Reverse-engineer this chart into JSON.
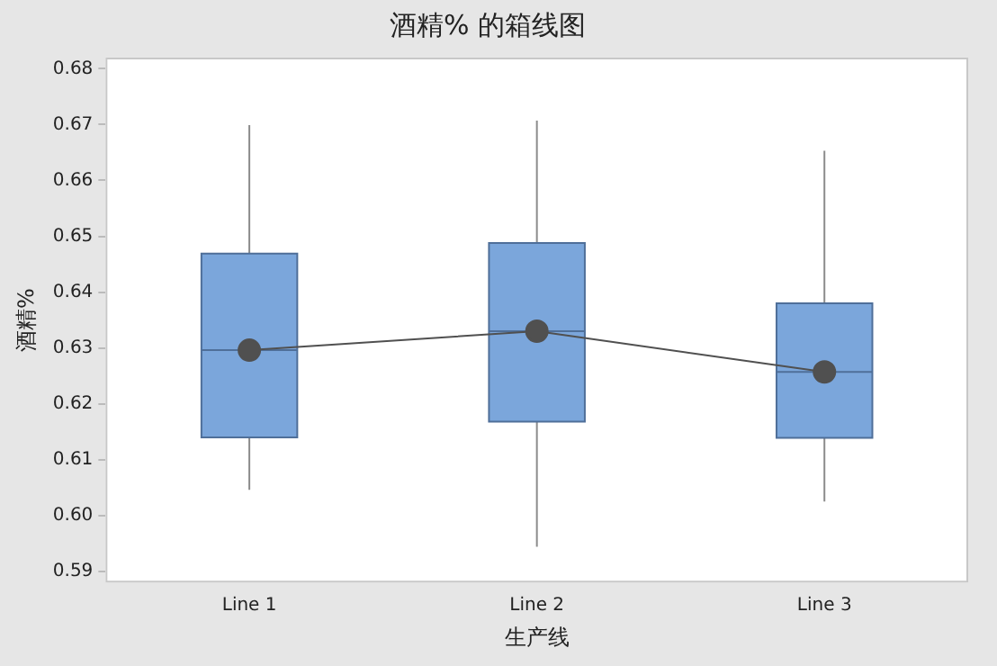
{
  "chart_data": {
    "type": "box",
    "title": "酒精% 的箱线图",
    "xlabel": "生产线",
    "ylabel": "酒精%",
    "categories": [
      "Line 1",
      "Line 2",
      "Line 3"
    ],
    "color": "#7ba6db",
    "boxes": [
      {
        "low": 0.6046,
        "q1": 0.614,
        "median": 0.6296,
        "q3": 0.6469,
        "high": 0.6699
      },
      {
        "low": 0.5944,
        "q1": 0.6168,
        "median": 0.633,
        "q3": 0.6488,
        "high": 0.6707
      },
      {
        "low": 0.6025,
        "q1": 0.6139,
        "median": 0.6257,
        "q3": 0.638,
        "high": 0.6653
      }
    ],
    "series": [
      {
        "type": "line",
        "color": "#505050",
        "values": [
          0.6296,
          0.633,
          0.6257
        ]
      }
    ],
    "marker": "circle",
    "ylim": [
      0.588,
      0.682
    ],
    "yticks": [
      0.59,
      {
        "value": 0.6,
        "label": "0.60"
      },
      0.61,
      0.62,
      0.63,
      0.64,
      0.65,
      0.66,
      0.67,
      0.68
    ],
    "grid": false
  }
}
